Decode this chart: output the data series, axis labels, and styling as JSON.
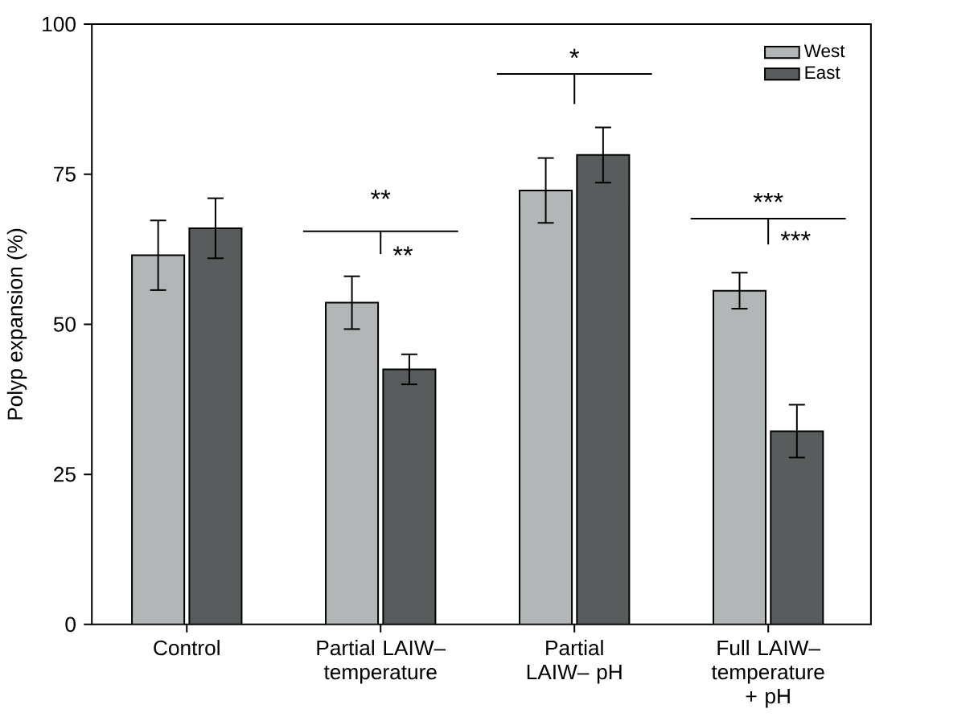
{
  "chart_data": {
    "type": "bar",
    "ylabel": "Polyp expansion (%)",
    "categories": [
      "Control",
      "Partial LAIW– temperature",
      "Partial LAIW– pH",
      "Full LAIW– temperature + pH"
    ],
    "series": [
      {
        "name": "West",
        "color": "#b3b6b6",
        "values": [
          61.5,
          53.6,
          72.3,
          55.6
        ],
        "errors": [
          5.8,
          4.4,
          5.4,
          3.0
        ]
      },
      {
        "name": "East",
        "color": "#595c5c",
        "values": [
          66.0,
          42.5,
          78.2,
          32.2
        ],
        "errors": [
          5.0,
          2.5,
          4.6,
          4.4
        ]
      }
    ],
    "ylim": [
      0,
      100
    ],
    "yticks": [
      0,
      25,
      50,
      75,
      100
    ],
    "legend": "top right",
    "annotations": [
      "**",
      "**",
      "*",
      "***",
      "***"
    ]
  }
}
